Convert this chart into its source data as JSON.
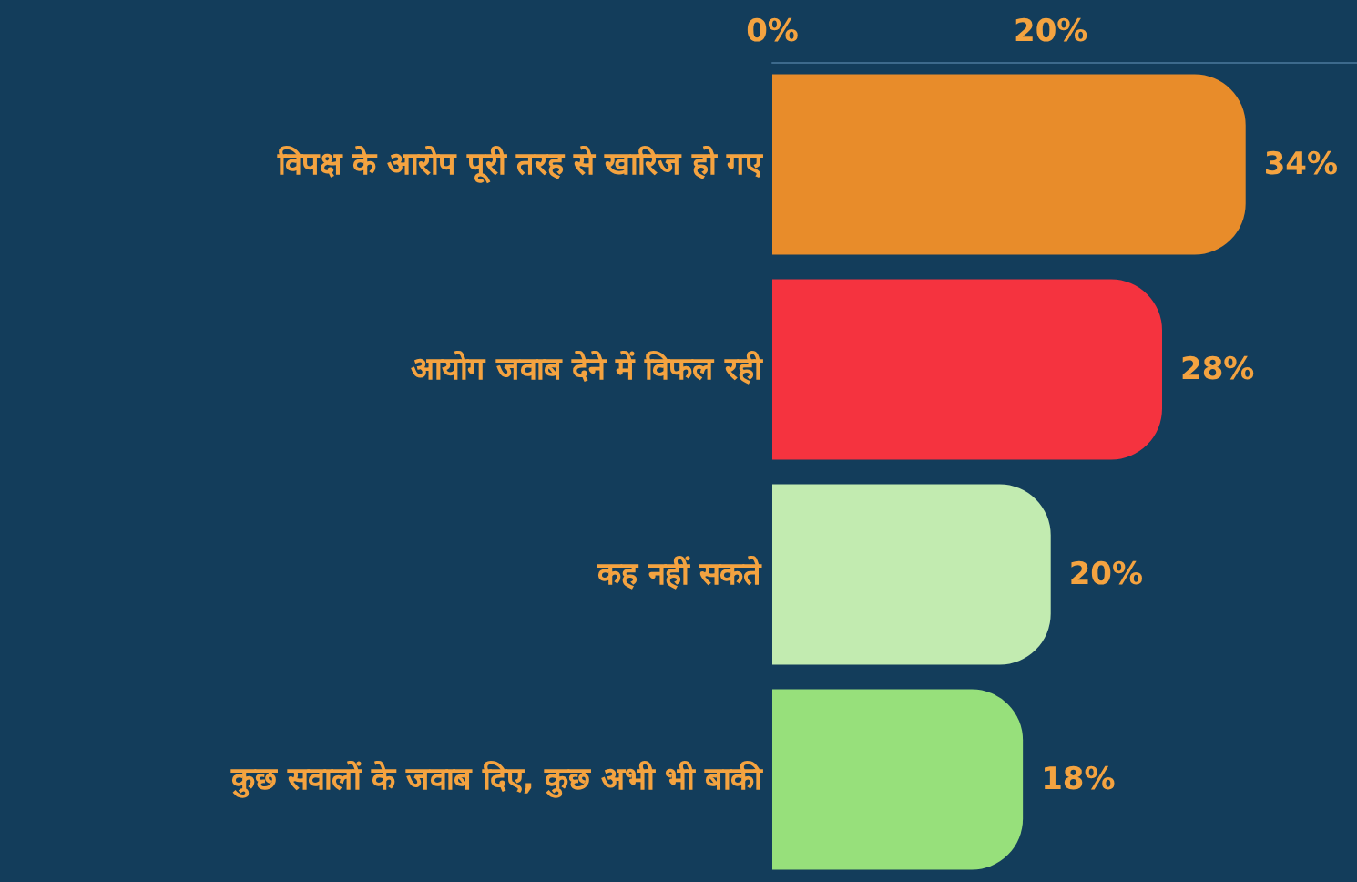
{
  "chart_data": {
    "type": "bar",
    "orientation": "horizontal",
    "categories": [
      "विपक्ष के आरोप पूरी तरह से खारिज हो गए",
      "आयोग जवाब देने में विफल रही",
      "कह नहीं सकते",
      "कुछ सवालों के जवाब दिए, कुछ अभी भी बाकी"
    ],
    "values": [
      34,
      28,
      20,
      18
    ],
    "colors": [
      "#e88c2a",
      "#f5333f",
      "#c2ebb0",
      "#97e07b"
    ],
    "value_labels": [
      "34%",
      "28%",
      "20%",
      "18%"
    ],
    "xlim": [
      0,
      42
    ],
    "xticks": [
      {
        "value": 0,
        "label": "0%"
      },
      {
        "value": 20,
        "label": "20%"
      }
    ],
    "grid": false
  }
}
